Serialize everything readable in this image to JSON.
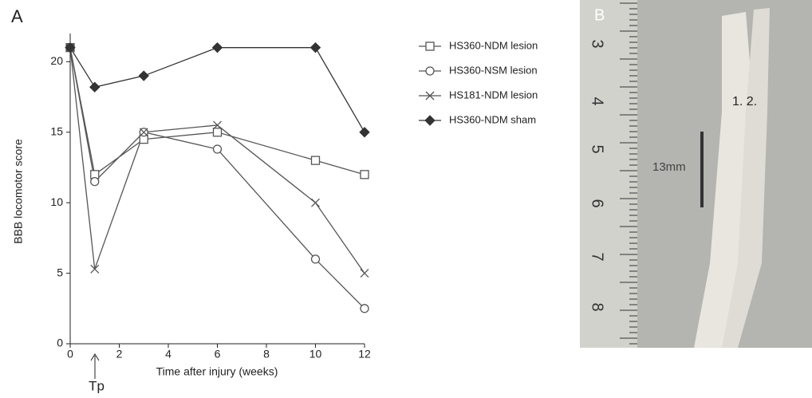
{
  "panel_label": "A",
  "chart_data": {
    "type": "line",
    "x_label": "Time after injury (weeks)",
    "y_label": "BBB locomotor score",
    "annotation": "Tp",
    "x": [
      0,
      1,
      3,
      6,
      10,
      12
    ],
    "series": [
      {
        "name": "HS360-NDM lesion",
        "color": "#555555",
        "marker": "square",
        "values": [
          21,
          12,
          14.5,
          15,
          13,
          12
        ]
      },
      {
        "name": "HS360-NSM lesion",
        "color": "#555555",
        "marker": "circle",
        "values": [
          21,
          11.5,
          15,
          13.8,
          6,
          2.5
        ]
      },
      {
        "name": "HS181-NDM lesion",
        "color": "#555555",
        "marker": "x",
        "values": [
          21,
          5.3,
          15,
          15.5,
          10,
          5
        ]
      },
      {
        "name": "HS360-NDM sham",
        "color": "#333333",
        "marker": "diamond",
        "values": [
          21,
          18.2,
          19,
          21,
          21,
          15
        ]
      }
    ],
    "xlim": [
      0,
      12
    ],
    "xticks": [
      0,
      2,
      4,
      6,
      8,
      10,
      12
    ],
    "ylim": [
      0,
      22
    ],
    "yticks": [
      0,
      5,
      10,
      15,
      20
    ],
    "grid": false,
    "legend": "right"
  },
  "photo": {
    "label": "B",
    "annotation": "1. 2.",
    "scale_label": "13mm",
    "ruler_labels": [
      "3",
      "4",
      "5",
      "6",
      "7",
      "8"
    ]
  }
}
